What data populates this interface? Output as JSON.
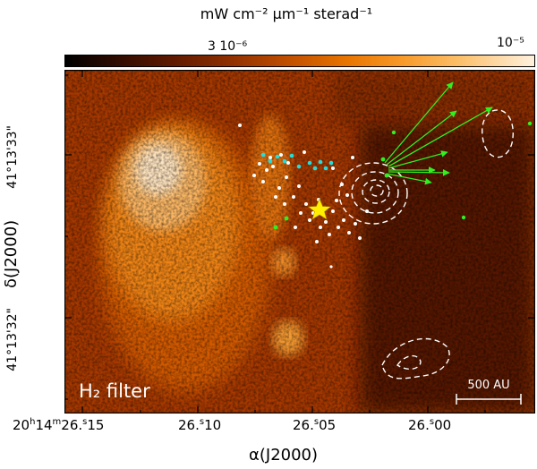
{
  "colorbar": {
    "unit_label": "mW cm⁻² μm⁻¹ sterad⁻¹",
    "tick_low": "3 10⁻⁶",
    "tick_high": "10⁻⁵",
    "colors": [
      "#000000",
      "#5c1800",
      "#c25000",
      "#f89a2a",
      "#fff1de"
    ]
  },
  "image": {
    "filter_label": "H₂ filter",
    "scale_bar_label": "500 AU",
    "marker_colors": {
      "star": "#ffee00",
      "arrows": "#33ee22",
      "dots_white": "#ffffff",
      "dots_cyan": "#22dddd",
      "contours": "#ffffff"
    }
  },
  "axes": {
    "y_label": "δ(J2000)",
    "y_ticks": [
      "41°13'33\"",
      "41°13'32\""
    ],
    "x_label": "α(J2000)",
    "x_ticks": [
      {
        "prefix": "20",
        "h": "h",
        "main": "14",
        "m": "m",
        "sec": "26.",
        "s": "s",
        "frac": "15"
      },
      {
        "main": "26.",
        "s": "s",
        "frac": "10"
      },
      {
        "main": "26.",
        "s": "s",
        "frac": "05"
      },
      {
        "main": "26.",
        "s": "s",
        "frac": "00"
      }
    ]
  }
}
